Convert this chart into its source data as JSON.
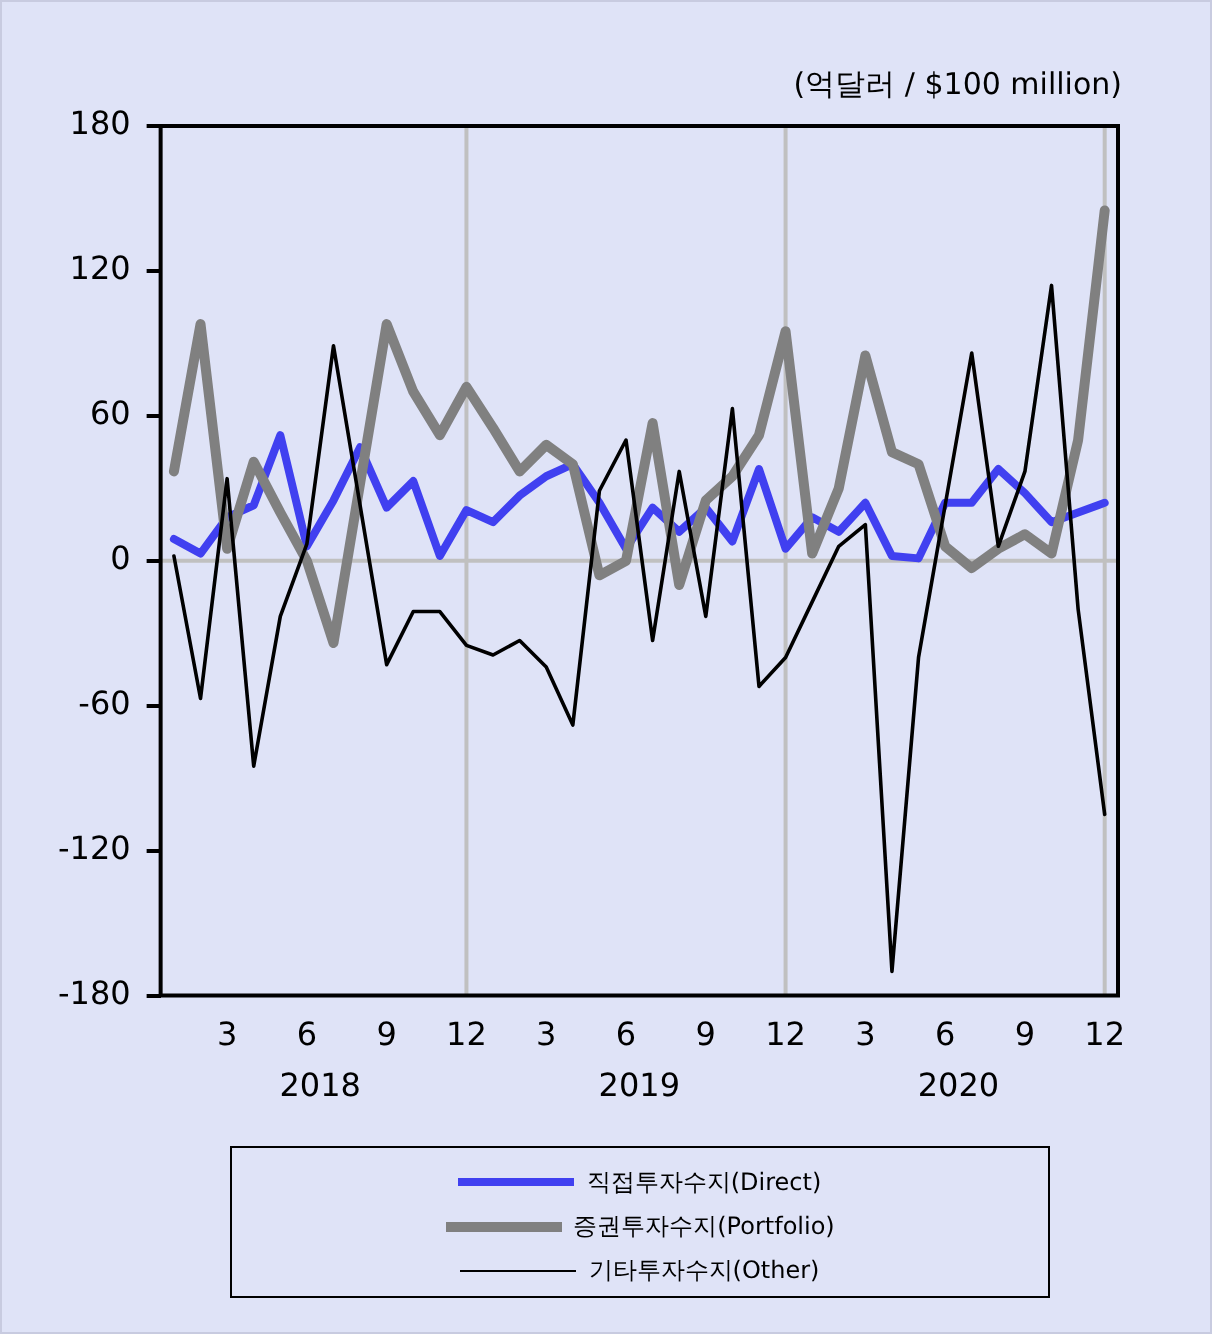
{
  "chart_data": {
    "type": "line",
    "ylabel": "(억달러 / $100 million)",
    "categories": [
      null,
      null,
      "3",
      null,
      null,
      "6",
      null,
      null,
      "9",
      null,
      null,
      "12",
      null,
      null,
      "3",
      null,
      null,
      "6",
      null,
      null,
      "9",
      null,
      null,
      "12",
      null,
      null,
      "3",
      null,
      null,
      "6",
      null,
      null,
      "9",
      null,
      null,
      "12"
    ],
    "series": [
      {
        "name": "직접투자수지(Direct)",
        "color": "#4040f0",
        "values": [
          9,
          3,
          18,
          23,
          52,
          6,
          25,
          47,
          22,
          33,
          2,
          21,
          16,
          27,
          35,
          40,
          24,
          5,
          22,
          12,
          22,
          8,
          38,
          5,
          18,
          12,
          24,
          2,
          1,
          24,
          24,
          38,
          28,
          16,
          20,
          24
        ]
      },
      {
        "name": "증권투자수지(Portfolio)",
        "color": "#808080",
        "values": [
          37,
          98,
          5,
          41,
          20,
          0,
          -34,
          32,
          98,
          70,
          52,
          72,
          55,
          37,
          48,
          40,
          -6,
          0,
          57,
          -10,
          25,
          35,
          52,
          95,
          3,
          30,
          85,
          45,
          40,
          6,
          -3,
          5,
          11,
          3,
          50,
          145
        ]
      },
      {
        "name": "기타투자수지(Other)",
        "color": "#000000",
        "values": [
          2,
          -57,
          34,
          -85,
          -23,
          7,
          89,
          23,
          -43,
          -21,
          -21,
          -35,
          -39,
          -33,
          -44,
          -68,
          29,
          50,
          -33,
          37,
          -23,
          63,
          -52,
          -40,
          -17,
          6,
          15,
          -170,
          -40,
          23,
          86,
          6,
          37,
          114,
          -20,
          -105
        ]
      }
    ],
    "ylim": [
      -180,
      180
    ],
    "yticks": [
      -180,
      -120,
      -60,
      0,
      60,
      120,
      180
    ],
    "ref_lines": [
      {
        "axis": "y",
        "value": 0,
        "color": "#c0c0c0"
      }
    ],
    "grid": "x",
    "annotations": [
      "2018",
      "2019",
      "2020"
    ],
    "legend": "bottom"
  }
}
